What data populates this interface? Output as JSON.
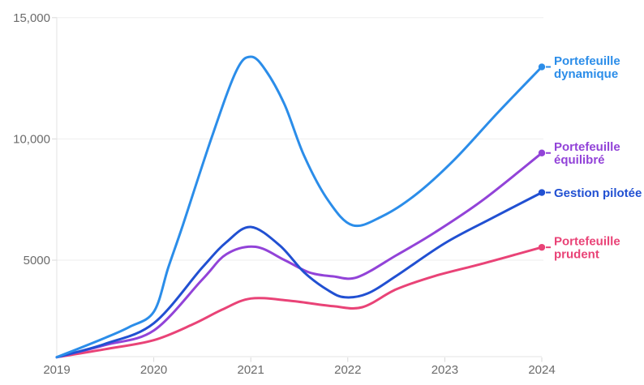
{
  "chart_data": {
    "type": "line",
    "title": "",
    "x_axis": {
      "range": [
        2019,
        2024
      ],
      "ticks": [
        2019,
        2020,
        2021,
        2022,
        2023,
        2024
      ],
      "tick_labels": [
        "2019",
        "2020",
        "2021",
        "2022",
        "2023",
        "2024"
      ]
    },
    "y_axis": {
      "range": [
        1000,
        15000
      ],
      "ticks": [
        5000,
        10000,
        15000
      ],
      "tick_labels": [
        "5000",
        "10,000",
        "15,000"
      ]
    },
    "layout_hints": {
      "grid": "horizontal-only",
      "legend_position": "right-of-line-ends",
      "background": "#ffffff"
    },
    "series": [
      {
        "name": "Portefeuille prudent",
        "label_lines": [
          "Portefeuille",
          "prudent"
        ],
        "color": "#e94377",
        "points": [
          [
            2019,
            1000
          ],
          [
            2019.5,
            1330
          ],
          [
            2020,
            1700
          ],
          [
            2020.4,
            2350
          ],
          [
            2020.7,
            2950
          ],
          [
            2021,
            3420
          ],
          [
            2021.4,
            3330
          ],
          [
            2021.85,
            3100
          ],
          [
            2022.15,
            3060
          ],
          [
            2022.5,
            3800
          ],
          [
            2022.9,
            4350
          ],
          [
            2023.4,
            4870
          ],
          [
            2024,
            5530
          ]
        ]
      },
      {
        "name": "Portefeuille équilibré",
        "label_lines": [
          "Portefeuille",
          "équilibré"
        ],
        "color": "#9243d8",
        "points": [
          [
            2019,
            1000
          ],
          [
            2019.5,
            1500
          ],
          [
            2020,
            2100
          ],
          [
            2020.5,
            4200
          ],
          [
            2020.75,
            5250
          ],
          [
            2021.05,
            5550
          ],
          [
            2021.35,
            5000
          ],
          [
            2021.6,
            4500
          ],
          [
            2021.85,
            4330
          ],
          [
            2022.1,
            4300
          ],
          [
            2022.5,
            5200
          ],
          [
            2022.9,
            6150
          ],
          [
            2023.4,
            7500
          ],
          [
            2024,
            9420
          ]
        ]
      },
      {
        "name": "Gestion pilotée",
        "label_lines": [
          "Gestion pilotée"
        ],
        "color": "#2150d2",
        "points": [
          [
            2019,
            1000
          ],
          [
            2019.5,
            1550
          ],
          [
            2020,
            2400
          ],
          [
            2020.5,
            4700
          ],
          [
            2020.75,
            5750
          ],
          [
            2021,
            6370
          ],
          [
            2021.3,
            5600
          ],
          [
            2021.55,
            4500
          ],
          [
            2021.8,
            3750
          ],
          [
            2021.97,
            3470
          ],
          [
            2022.2,
            3620
          ],
          [
            2022.5,
            4350
          ],
          [
            2023,
            5700
          ],
          [
            2023.5,
            6760
          ],
          [
            2024,
            7790
          ]
        ]
      },
      {
        "name": "Portefeuille dynamique",
        "label_lines": [
          "Portefeuille",
          "dynamique"
        ],
        "color": "#2b8de9",
        "points": [
          [
            2019,
            1000
          ],
          [
            2019.5,
            1800
          ],
          [
            2019.75,
            2250
          ],
          [
            2020,
            2870
          ],
          [
            2020.15,
            4700
          ],
          [
            2020.3,
            6450
          ],
          [
            2020.6,
            10100
          ],
          [
            2020.85,
            12800
          ],
          [
            2021,
            13390
          ],
          [
            2021.15,
            12850
          ],
          [
            2021.35,
            11400
          ],
          [
            2021.55,
            9300
          ],
          [
            2021.8,
            7450
          ],
          [
            2022.05,
            6440
          ],
          [
            2022.35,
            6800
          ],
          [
            2022.7,
            7700
          ],
          [
            2023.1,
            9150
          ],
          [
            2023.55,
            11100
          ],
          [
            2024,
            12970
          ]
        ]
      }
    ]
  },
  "colors": {
    "grid": "#ededed",
    "axis": "#e3e3e3",
    "tick": "#d8d8d8",
    "axis_label": "#6b6b6b"
  }
}
